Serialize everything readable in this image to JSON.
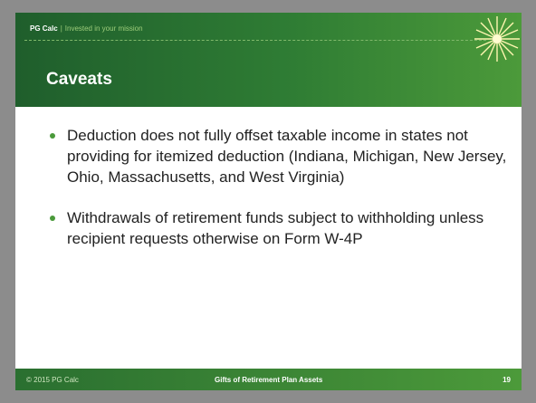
{
  "header": {
    "brand": "PG Calc",
    "separator": "|",
    "tagline": "Invested in your mission",
    "title": "Caveats"
  },
  "bullets": [
    "Deduction does not fully offset taxable income in states not providing for itemized deduction (Indiana, Michigan, New Jersey, Ohio, Massachusetts, and West Virginia)",
    "Withdrawals of retirement funds subject to withholding unless recipient requests otherwise on Form W-4P"
  ],
  "footer": {
    "copyright": "© 2015 PG Calc",
    "center": "Gifts of Retirement Plan Assets",
    "page": "19"
  }
}
